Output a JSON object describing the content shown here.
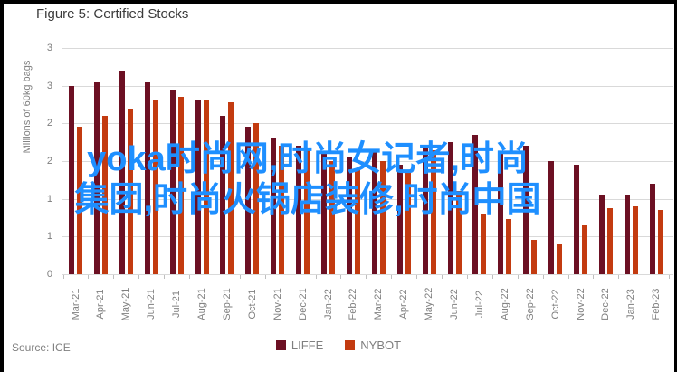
{
  "frame": {
    "title": "Figure 5: Certified Stocks",
    "source": "Source: ICE"
  },
  "watermark": {
    "line1": "yoka时尚网,时尚女记者,时尚",
    "line2": "集团,时尚火锅店装修,时尚中国",
    "color": "#1e8fff"
  },
  "chart_data": {
    "type": "bar",
    "title": "Figure 5: Certified Stocks",
    "xlabel": "",
    "ylabel": "Millions of 60kg bags",
    "ylim": [
      0,
      3
    ],
    "ytick_interval": 0.5,
    "ytick_labels_top_to_bottom": [
      "3",
      "3",
      "2",
      "2",
      "1",
      "1",
      "0"
    ],
    "grid": true,
    "legend_position": "bottom",
    "categories": [
      "Mar-21",
      "Apr-21",
      "May-21",
      "Jun-21",
      "Jul-21",
      "Aug-21",
      "Sep-21",
      "Oct-21",
      "Nov-21",
      "Dec-21",
      "Jan-22",
      "Feb-22",
      "Mar-22",
      "Apr-22",
      "May-22",
      "Jun-22",
      "Jul-22",
      "Aug-22",
      "Sep-22",
      "Oct-22",
      "Nov-22",
      "Dec-22",
      "Jan-23",
      "Feb-23"
    ],
    "series": [
      {
        "name": "LIFFE",
        "color": "#6c1023",
        "values": [
          2.5,
          2.55,
          2.7,
          2.55,
          2.45,
          2.3,
          2.1,
          1.95,
          1.8,
          1.7,
          1.6,
          1.55,
          1.65,
          1.45,
          1.7,
          1.75,
          1.85,
          1.62,
          1.7,
          1.5,
          1.45,
          1.05,
          1.05,
          1.2
        ]
      },
      {
        "name": "NYBOT",
        "color": "#c33b10",
        "values": [
          1.95,
          2.1,
          2.2,
          2.3,
          2.35,
          2.3,
          2.28,
          2.0,
          1.7,
          1.65,
          1.5,
          1.4,
          1.5,
          1.35,
          1.65,
          1.1,
          0.8,
          0.73,
          0.45,
          0.4,
          0.65,
          0.87,
          0.9,
          0.85
        ]
      }
    ]
  }
}
